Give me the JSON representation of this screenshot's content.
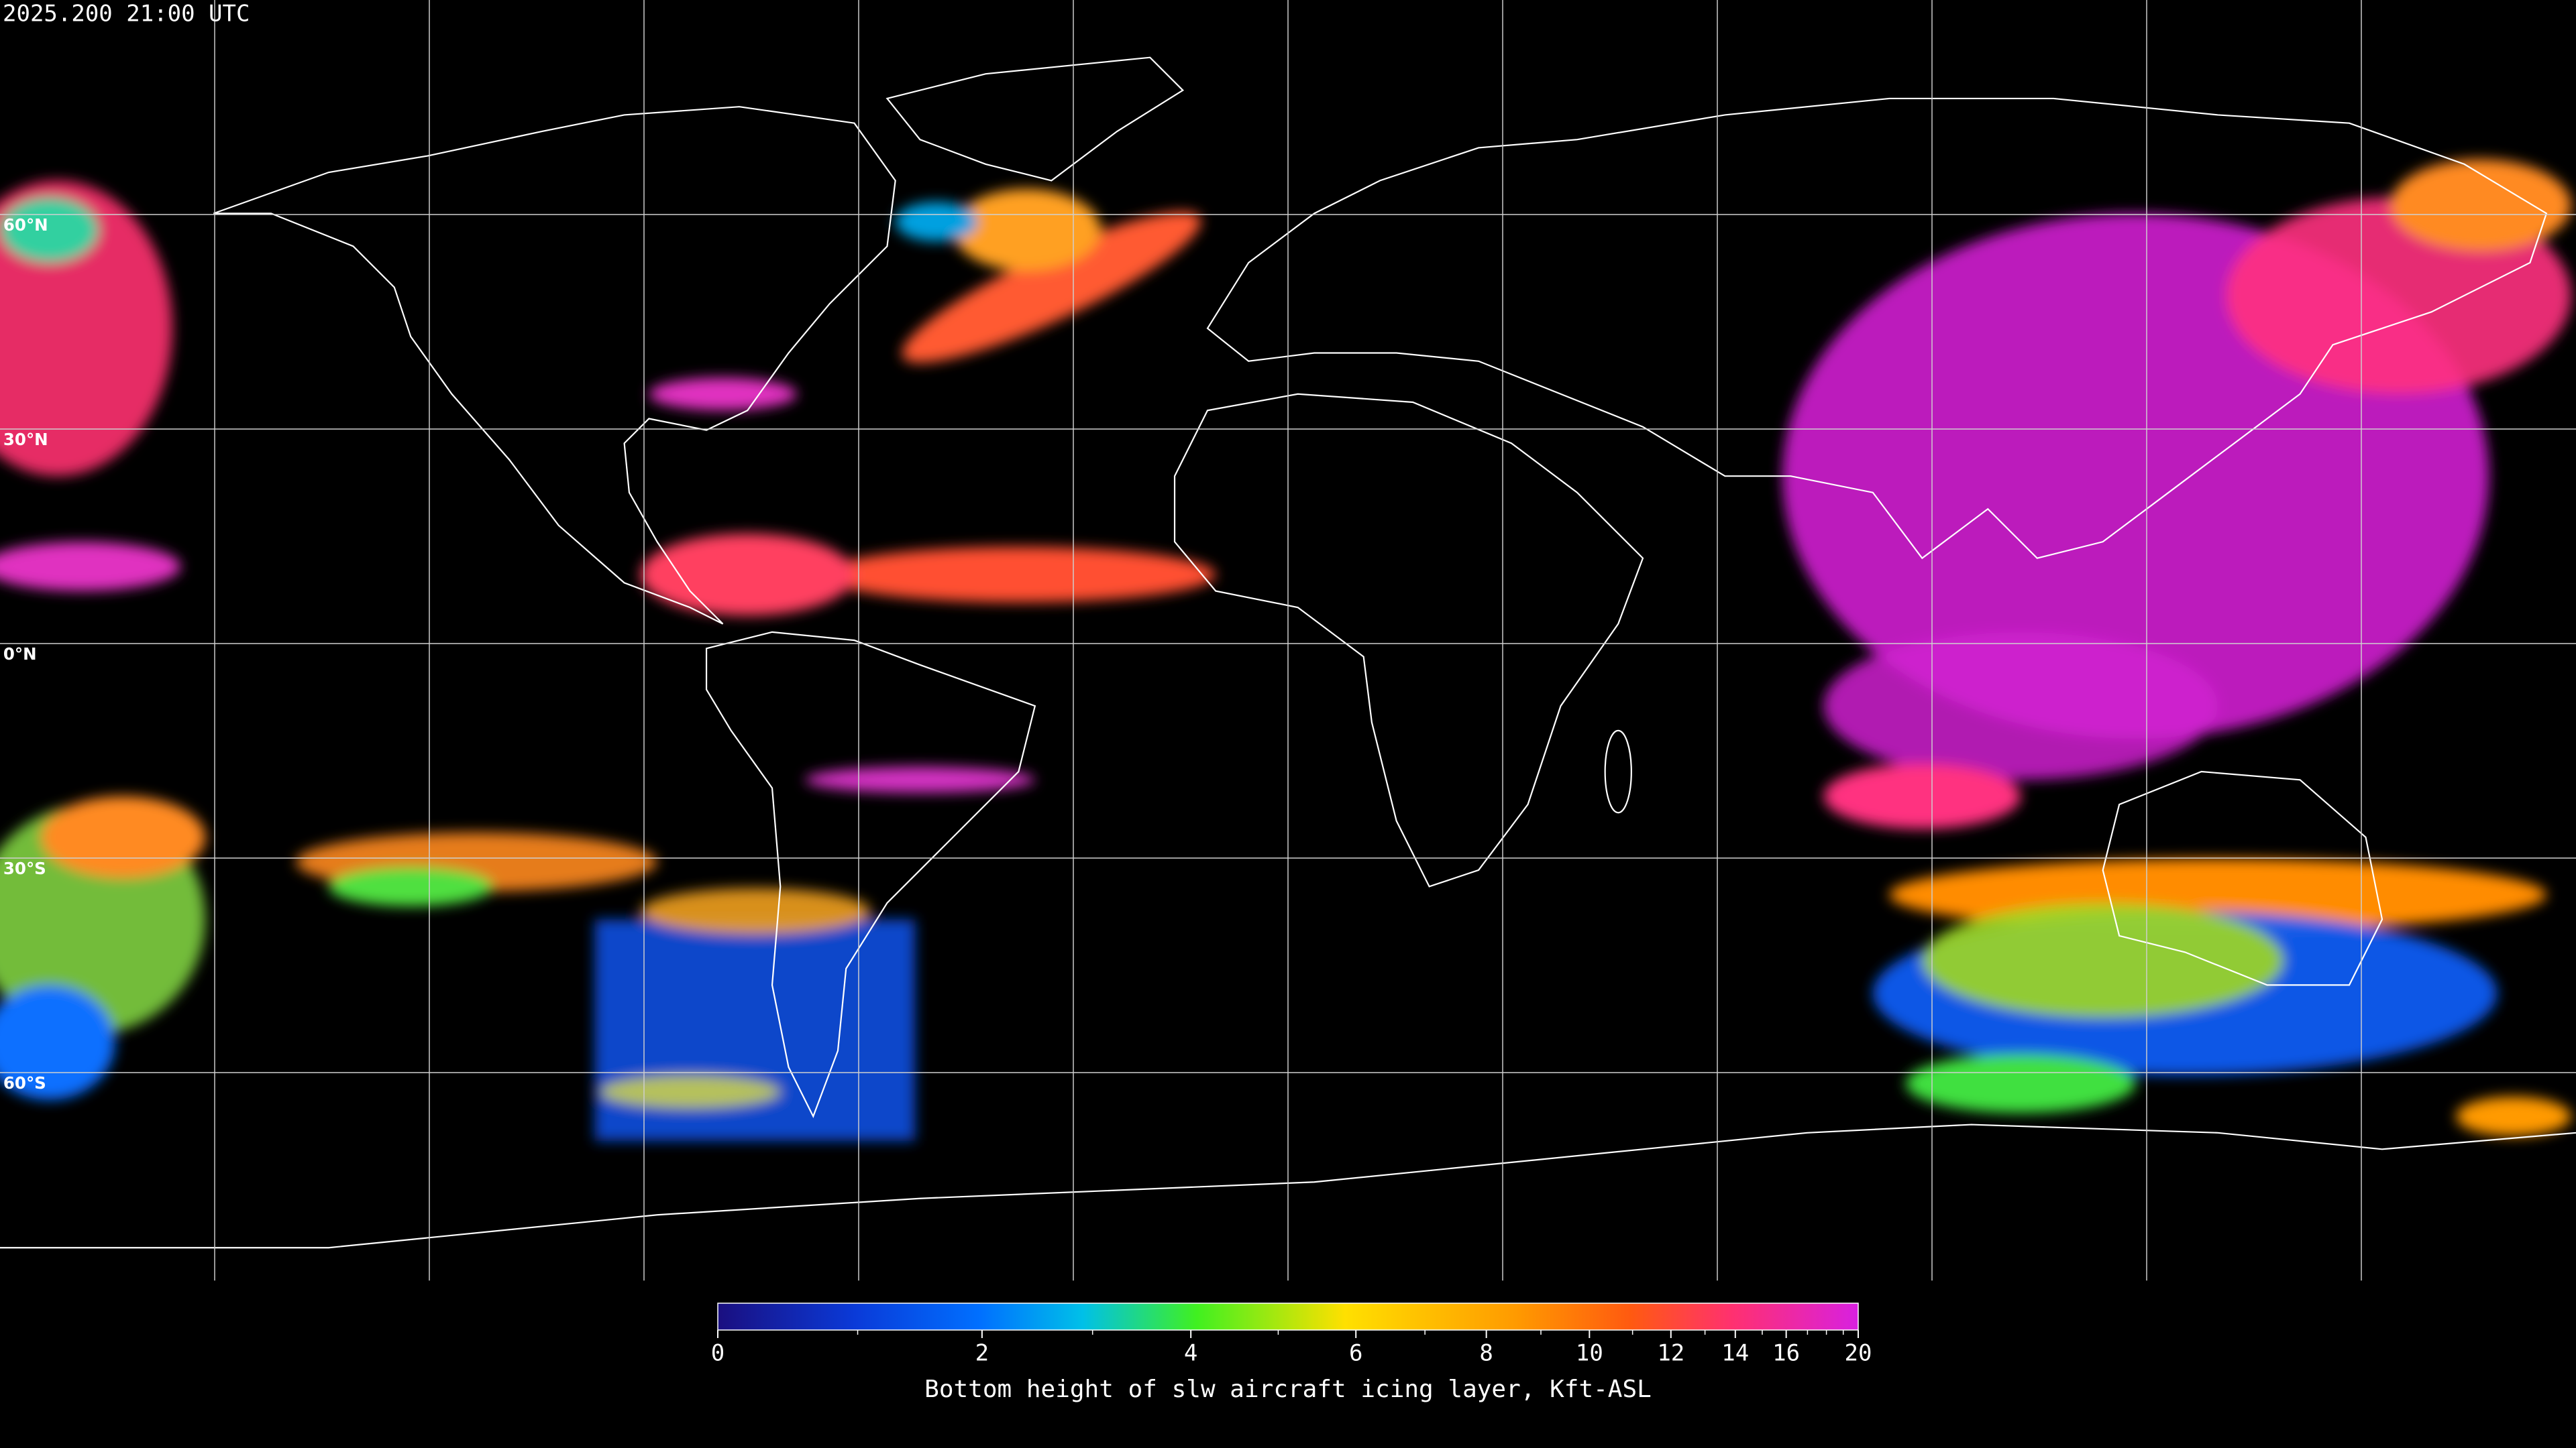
{
  "header": {
    "timestamp": "2025.200 21:00 UTC"
  },
  "map": {
    "lat_labels": [
      "60°N",
      "30°N",
      "0°N",
      "30°S",
      "60°S"
    ]
  },
  "colorbar": {
    "label": "Bottom height of slw aircraft icing layer, Kft-ASL",
    "range": [
      0,
      20
    ],
    "ticks": [
      0,
      2,
      4,
      6,
      8,
      10,
      12,
      14,
      16,
      20
    ],
    "minor_ticks": [
      1,
      3,
      5,
      7,
      9,
      11,
      13,
      15,
      17,
      18,
      19
    ]
  }
}
